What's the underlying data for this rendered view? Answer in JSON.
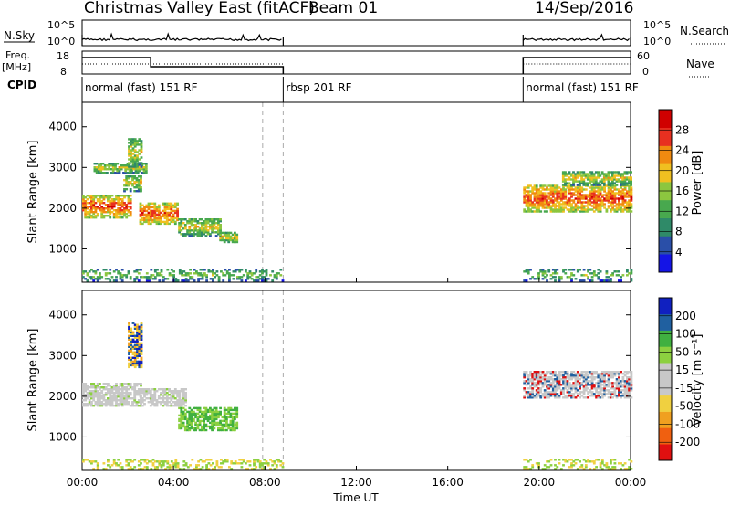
{
  "header": {
    "title": "Christmas Valley East (fitACF)",
    "beam": "Beam 01",
    "date": "14/Sep/2016"
  },
  "scan_panels": {
    "nsky_label": "N.Sky",
    "nsky_ticks": [
      "10^5",
      "10^0"
    ],
    "nsearch_label": "N.Search",
    "freq_label": "Freq.",
    "freq_unit": "[MHz]",
    "freq_ticks": [
      "18",
      "8"
    ],
    "nave_label": "Nave",
    "nave_ticks": [
      "60",
      "0"
    ],
    "cpid_label": "CPID",
    "cpid_segments": [
      {
        "label": "normal (fast) 151 RF",
        "start_h": 0,
        "end_h": 8.8
      },
      {
        "label": "rbsp 201 RF",
        "start_h": 8.8,
        "end_h": 19.3
      },
      {
        "label": "normal (fast) 151 RF",
        "start_h": 19.3,
        "end_h": 24
      }
    ]
  },
  "chart_data": [
    {
      "type": "heatmap",
      "name": "power",
      "ylabel": "Slant Range [km]",
      "yticks": [
        1000,
        2000,
        3000,
        4000
      ],
      "ylim": [
        180,
        4600
      ],
      "xlim": [
        0,
        24
      ],
      "colorbar": {
        "label": "Power [dB]",
        "ticks": [
          "4",
          "8",
          "12",
          "16",
          "20",
          "24",
          "28"
        ],
        "colors": [
          "#1414e6",
          "#2a4fa8",
          "#2f8a68",
          "#48a84e",
          "#8cc63f",
          "#f0c020",
          "#f08a10",
          "#e83020",
          "#d00000"
        ]
      },
      "bands": [
        {
          "t0": 0,
          "t1": 2.1,
          "r0": 1750,
          "r1": 2300
        },
        {
          "t0": 1.8,
          "t1": 2.6,
          "r0": 2400,
          "r1": 2800
        },
        {
          "t0": 0.5,
          "t1": 2.8,
          "r0": 2850,
          "r1": 3100
        },
        {
          "t0": 2.0,
          "t1": 2.6,
          "r0": 3000,
          "r1": 3700
        },
        {
          "t0": 2.5,
          "t1": 4.2,
          "r0": 1600,
          "r1": 2100
        },
        {
          "t0": 4.2,
          "t1": 6.0,
          "r0": 1300,
          "r1": 1750
        },
        {
          "t0": 6.0,
          "t1": 6.8,
          "r0": 1150,
          "r1": 1400
        },
        {
          "t0": 19.3,
          "t1": 24,
          "r0": 1900,
          "r1": 2550
        },
        {
          "t0": 21,
          "t1": 24,
          "r0": 2550,
          "r1": 2900
        },
        {
          "t0": 0,
          "t1": 8.8,
          "r0": 200,
          "r1": 500
        },
        {
          "t0": 19.3,
          "t1": 24,
          "r0": 200,
          "r1": 500
        }
      ]
    },
    {
      "type": "heatmap",
      "name": "velocity",
      "ylabel": "Slant Range [km]",
      "yticks": [
        1000,
        2000,
        3000,
        4000
      ],
      "ylim": [
        180,
        4600
      ],
      "xlim": [
        0,
        24
      ],
      "colorbar": {
        "label": "Velocity [m s⁻¹]",
        "ticks": [
          "-200",
          "-100",
          "-50",
          "-15",
          "15",
          "50",
          "100",
          "200"
        ],
        "colors": [
          "#e01010",
          "#f06010",
          "#f0a020",
          "#f0d040",
          "#c8c8c8",
          "#c8c8c8",
          "#8cd040",
          "#40b040",
          "#2060a0",
          "#1020c0"
        ]
      },
      "bands": [
        {
          "t0": 0,
          "t1": 2.6,
          "r0": 1750,
          "r1": 2300
        },
        {
          "t0": 2.5,
          "t1": 4.5,
          "r0": 1750,
          "r1": 2200
        },
        {
          "t0": 4.2,
          "t1": 6.8,
          "r0": 1150,
          "r1": 1700
        },
        {
          "t0": 2.0,
          "t1": 2.6,
          "r0": 2700,
          "r1": 3800
        },
        {
          "t0": 19.3,
          "t1": 24,
          "r0": 1950,
          "r1": 2600
        },
        {
          "t0": 0,
          "t1": 8.8,
          "r0": 200,
          "r1": 450
        },
        {
          "t0": 19.3,
          "t1": 24,
          "r0": 200,
          "r1": 450
        }
      ]
    }
  ],
  "xaxis": {
    "ticks": [
      "00:00",
      "04:00",
      "08:00",
      "12:00",
      "16:00",
      "20:00",
      "00:00"
    ],
    "label": "Time UT"
  }
}
